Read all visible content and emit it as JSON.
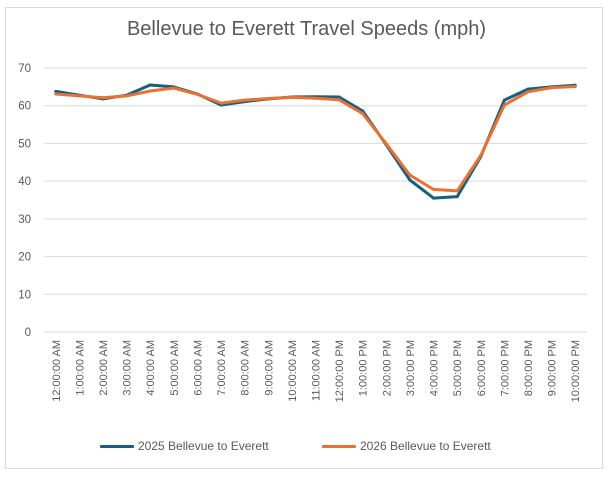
{
  "chart_data": {
    "type": "line",
    "title": "Bellevue to Everett Travel Speeds (mph)",
    "xlabel": "",
    "ylabel": "",
    "ylim": [
      0,
      70
    ],
    "yticks": [
      0,
      10,
      20,
      30,
      40,
      50,
      60,
      70
    ],
    "grid": true,
    "legend_position": "bottom",
    "categories": [
      "12:00:00 AM",
      "1:00:00 AM",
      "2:00:00 AM",
      "3:00:00 AM",
      "4:00:00 AM",
      "5:00:00 AM",
      "6:00:00 AM",
      "7:00:00 AM",
      "8:00:00 AM",
      "9:00:00 AM",
      "10:00:00 AM",
      "11:00:00 AM",
      "12:00:00 PM",
      "1:00:00 PM",
      "2:00:00 PM",
      "3:00:00 PM",
      "4:00:00 PM",
      "5:00:00 PM",
      "6:00:00 PM",
      "7:00:00 PM",
      "8:00:00 PM",
      "9:00:00 PM",
      "10:00:00 PM"
    ],
    "series": [
      {
        "name": "2025 Bellevue to Everett",
        "color": "#156082",
        "values": [
          63.8,
          62.8,
          61.8,
          62.8,
          65.5,
          65.0,
          63.1,
          60.2,
          61.1,
          61.8,
          62.3,
          62.4,
          62.3,
          58.6,
          49.6,
          40.3,
          35.5,
          35.9,
          46.5,
          61.5,
          64.4,
          65.0,
          65.4
        ]
      },
      {
        "name": "2026 Bellevue to Everett",
        "color": "#E97132",
        "values": [
          63.1,
          62.6,
          62.1,
          62.6,
          63.9,
          64.7,
          63.0,
          60.7,
          61.5,
          61.9,
          62.2,
          62.0,
          61.6,
          57.9,
          49.9,
          41.6,
          37.8,
          37.4,
          46.8,
          60.2,
          63.7,
          64.8,
          65.1
        ]
      }
    ]
  }
}
